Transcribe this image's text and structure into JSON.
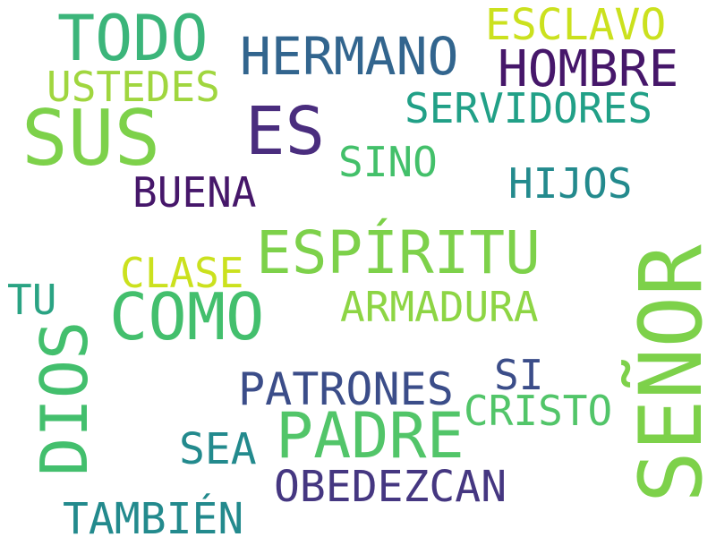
{
  "words": [
    {
      "id": "todo",
      "text": "TODO",
      "color": "#3BB57A"
    },
    {
      "id": "hermano",
      "text": "HERMANO",
      "color": "#32658E"
    },
    {
      "id": "esclavo",
      "text": "ESCLAVO",
      "color": "#CBE11E"
    },
    {
      "id": "hombre",
      "text": "HOMBRE",
      "color": "#46176A"
    },
    {
      "id": "ustedes",
      "text": "USTEDES",
      "color": "#A0D63F"
    },
    {
      "id": "sus",
      "text": "SUS",
      "color": "#7DD14A"
    },
    {
      "id": "es",
      "text": "ES",
      "color": "#4A2D7E"
    },
    {
      "id": "servidores",
      "text": "SERVIDORES",
      "color": "#21A087"
    },
    {
      "id": "sino",
      "text": "SINO",
      "color": "#43C06A"
    },
    {
      "id": "hijos",
      "text": "HIJOS",
      "color": "#238A8D"
    },
    {
      "id": "buena",
      "text": "BUENA",
      "color": "#46176A"
    },
    {
      "id": "espiritu",
      "text": "ESPÍRITU",
      "color": "#7DD14A"
    },
    {
      "id": "clase",
      "text": "CLASE",
      "color": "#CBE11E"
    },
    {
      "id": "tu",
      "text": "TU",
      "color": "#2AA383"
    },
    {
      "id": "como",
      "text": "COMO",
      "color": "#43BF6D"
    },
    {
      "id": "armadura",
      "text": "ARMADURA",
      "color": "#8DD544"
    },
    {
      "id": "dios",
      "text": "DIOS",
      "color": "#43BF6D"
    },
    {
      "id": "senor",
      "text": "SEÑOR",
      "color": "#7DD14A"
    },
    {
      "id": "patrones",
      "text": "PATRONES",
      "color": "#3B4D89"
    },
    {
      "id": "si",
      "text": "SI",
      "color": "#3B4D89"
    },
    {
      "id": "cristo",
      "text": "CRISTO",
      "color": "#52C569"
    },
    {
      "id": "padre",
      "text": "PADRE",
      "color": "#52C569"
    },
    {
      "id": "sea",
      "text": "SEA",
      "color": "#238A8D"
    },
    {
      "id": "obedezcan",
      "text": "OBEDEZCAN",
      "color": "#453781"
    },
    {
      "id": "tambien",
      "text": "TAMBIÉN",
      "color": "#238A8D"
    }
  ]
}
